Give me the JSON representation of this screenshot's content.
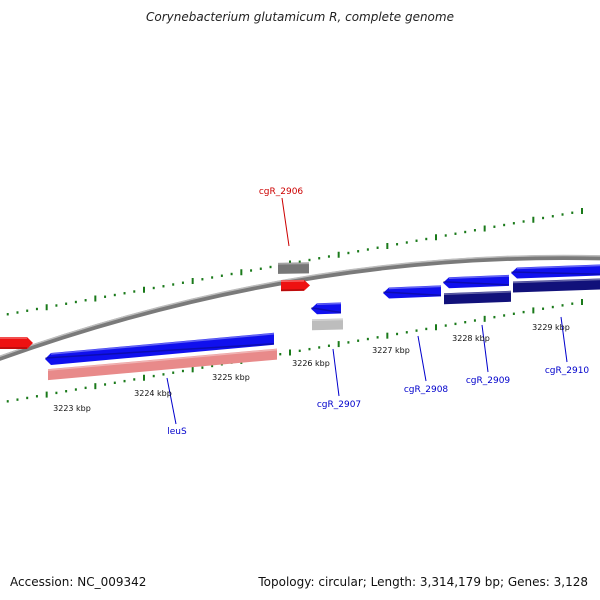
{
  "title": "Corynebacterium glutamicum R, complete genome",
  "footer": {
    "accession": "Accession: NC_009342",
    "summary": "Topology: circular; Length: 3,314,179 bp; Genes: 3,128"
  },
  "colors": {
    "forward_gene": "#1010ee",
    "reverse_gene_light": "#e88a8a",
    "highlight_gene": "#ee1111",
    "dark_gene": "#11117a",
    "gray_gene": "#777777",
    "light_gray_gene": "#bdbdbd",
    "tick": "#1a7a1a",
    "backbone": "#8a8a8a",
    "label_blue": "#0000cc",
    "label_red": "#cc0000"
  },
  "scale_labels": [
    "3223 kbp",
    "3224 kbp",
    "3225 kbp",
    "3226 kbp",
    "3227 kbp",
    "3228 kbp",
    "3229 kbp"
  ],
  "gene_labels": [
    "cgR_2906",
    "cgR_2907",
    "leuS",
    "cgR_2908",
    "cgR_2909",
    "cgR_2910"
  ]
}
